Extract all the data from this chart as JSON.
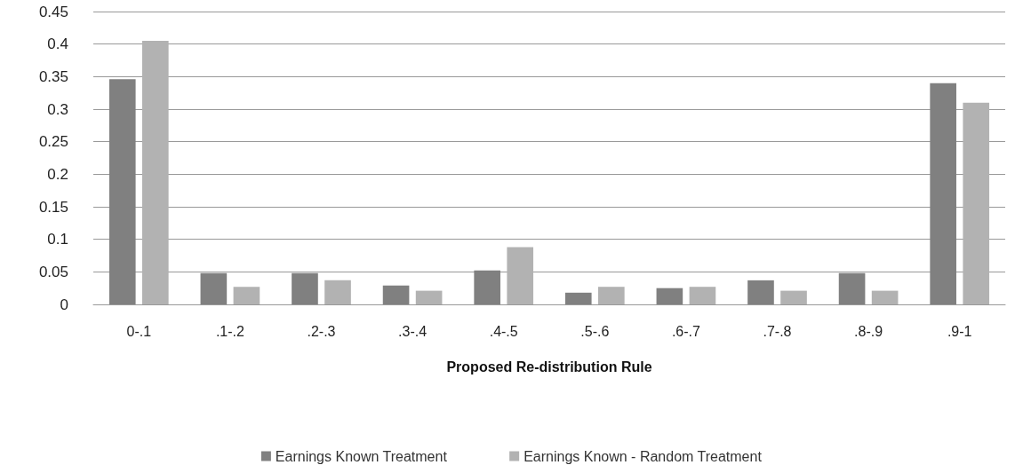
{
  "chart_data": {
    "type": "bar",
    "xlabel": "Proposed Re-distribution Rule",
    "categories": [
      "0-.1",
      ".1-.2",
      ".2-.3",
      ".3-.4",
      ".4-.5",
      ".5-.6",
      ".6-.7",
      ".7-.8",
      ".8-.9",
      ".9-1"
    ],
    "series": [
      {
        "name": "Earnings Known Treatment",
        "color": "#808080",
        "values": [
          0.346,
          0.048,
          0.048,
          0.029,
          0.052,
          0.018,
          0.025,
          0.037,
          0.048,
          0.34
        ]
      },
      {
        "name": "Earnings Known - Random Treatment",
        "color": "#b2b2b2",
        "values": [
          0.405,
          0.027,
          0.037,
          0.021,
          0.088,
          0.027,
          0.027,
          0.021,
          0.021,
          0.31
        ]
      }
    ],
    "ylim": [
      0,
      0.45
    ],
    "yticks": [
      0,
      0.05,
      0.1,
      0.15,
      0.2,
      0.25,
      0.3,
      0.35,
      0.4,
      0.45
    ],
    "grid": "y",
    "legend": "bottom"
  }
}
